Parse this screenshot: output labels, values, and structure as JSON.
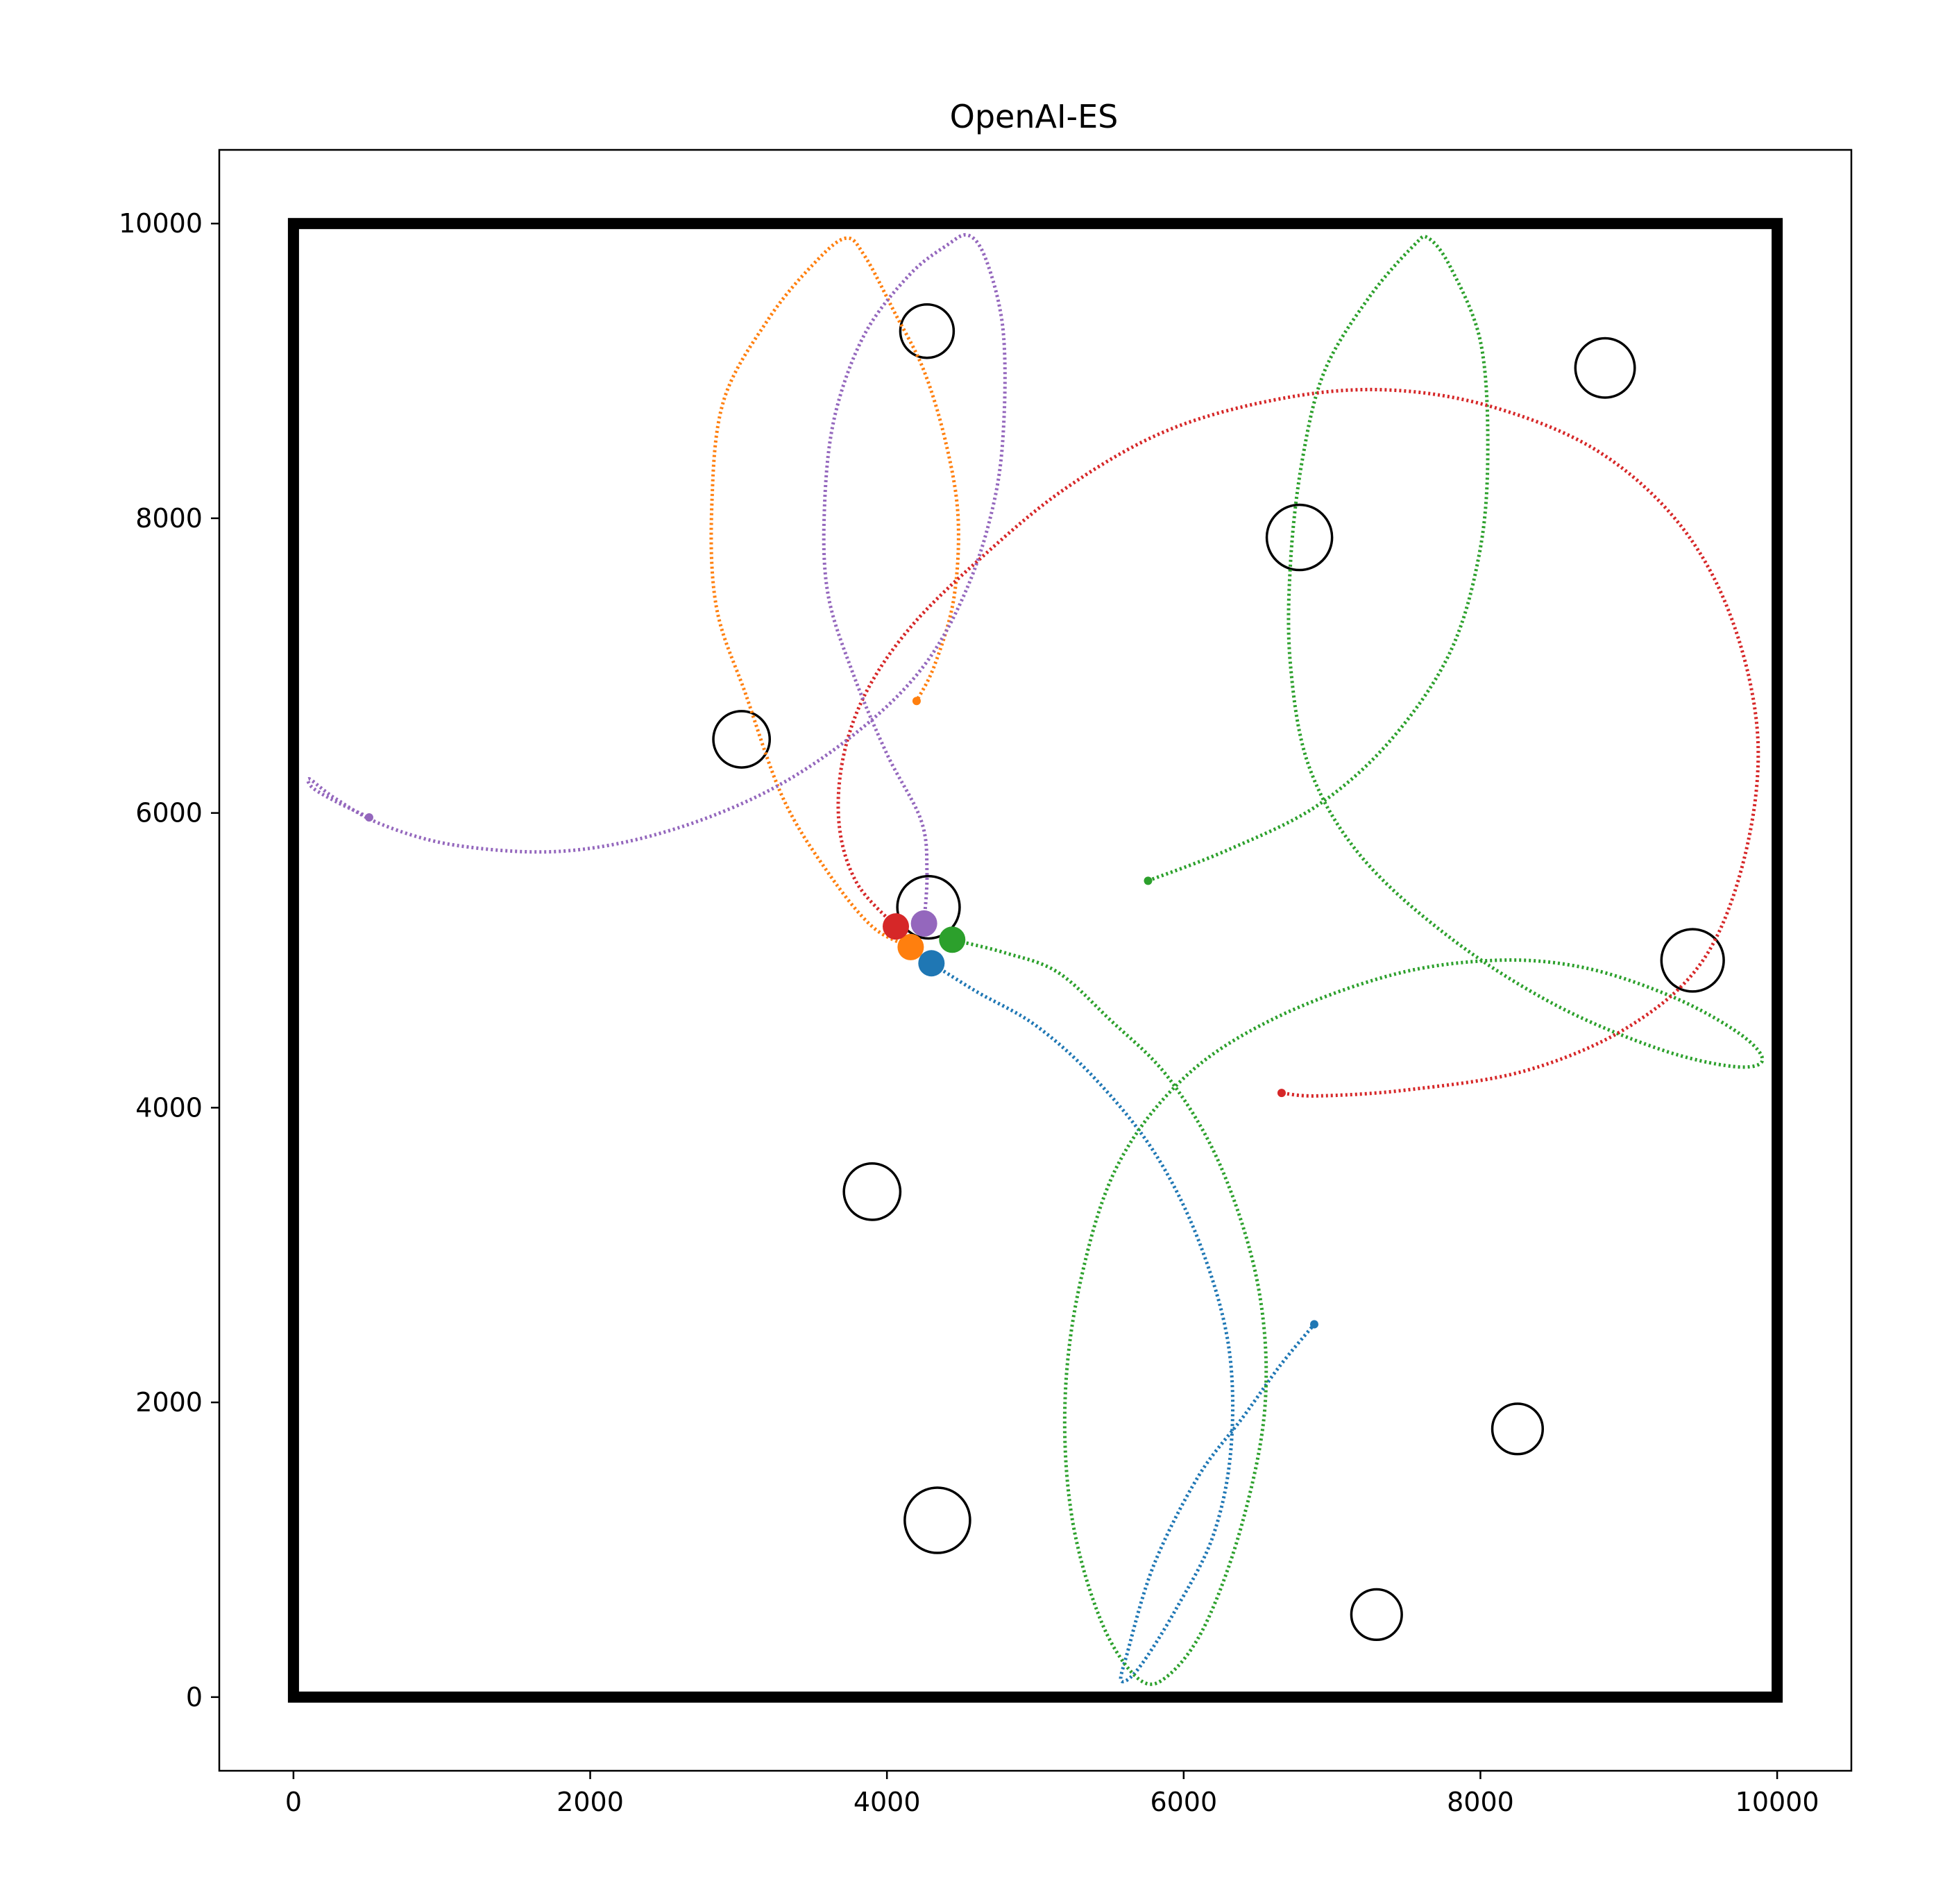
{
  "chart_data": {
    "type": "scatter",
    "title": "OpenAI-ES",
    "xlabel": "",
    "ylabel": "",
    "xlim": [
      -500,
      10500
    ],
    "ylim": [
      -500,
      10500
    ],
    "xticks": [
      0,
      2000,
      4000,
      6000,
      8000,
      10000
    ],
    "yticks": [
      0,
      2000,
      4000,
      6000,
      8000,
      10000
    ],
    "xtick_labels": [
      "0",
      "2000",
      "4000",
      "6000",
      "8000",
      "10000"
    ],
    "ytick_labels": [
      "0",
      "2000",
      "4000",
      "6000",
      "8000",
      "10000"
    ],
    "grid": false,
    "arena": {
      "x0": 0,
      "y0": 0,
      "x1": 10000,
      "y1": 10000
    },
    "obstacles": [
      {
        "x": 4270,
        "y": 9270,
        "r": 180
      },
      {
        "x": 8840,
        "y": 9020,
        "r": 200
      },
      {
        "x": 6780,
        "y": 7870,
        "r": 220
      },
      {
        "x": 3020,
        "y": 6500,
        "r": 190
      },
      {
        "x": 4280,
        "y": 5360,
        "r": 210
      },
      {
        "x": 9430,
        "y": 5000,
        "r": 210
      },
      {
        "x": 3900,
        "y": 3430,
        "r": 190
      },
      {
        "x": 8250,
        "y": 1820,
        "r": 170
      },
      {
        "x": 4340,
        "y": 1200,
        "r": 220
      },
      {
        "x": 7300,
        "y": 560,
        "r": 170
      }
    ],
    "series": [
      {
        "color": "#1f77b4",
        "start": [
          4300,
          4980
        ],
        "end": [
          6880,
          2530
        ],
        "points": [
          [
            4300,
            4980
          ],
          [
            4600,
            4790
          ],
          [
            5000,
            4560
          ],
          [
            5400,
            4200
          ],
          [
            5800,
            3700
          ],
          [
            6100,
            3100
          ],
          [
            6300,
            2400
          ],
          [
            6320,
            1700
          ],
          [
            6200,
            1100
          ],
          [
            5950,
            600
          ],
          [
            5700,
            200
          ],
          [
            5580,
            110
          ],
          [
            5620,
            300
          ],
          [
            5800,
            900
          ],
          [
            6100,
            1500
          ],
          [
            6400,
            1900
          ],
          [
            6650,
            2250
          ],
          [
            6880,
            2530
          ]
        ]
      },
      {
        "color": "#ff7f0e",
        "start": [
          4160,
          5090
        ],
        "end": [
          4200,
          6760
        ],
        "points": [
          [
            4160,
            5090
          ],
          [
            3900,
            5230
          ],
          [
            3600,
            5600
          ],
          [
            3300,
            6100
          ],
          [
            3050,
            6800
          ],
          [
            2850,
            7400
          ],
          [
            2820,
            8100
          ],
          [
            2900,
            8800
          ],
          [
            3200,
            9350
          ],
          [
            3500,
            9720
          ],
          [
            3720,
            9900
          ],
          [
            3850,
            9780
          ],
          [
            4050,
            9400
          ],
          [
            4250,
            9000
          ],
          [
            4400,
            8500
          ],
          [
            4480,
            8000
          ],
          [
            4450,
            7450
          ],
          [
            4320,
            7000
          ],
          [
            4200,
            6760
          ]
        ]
      },
      {
        "color": "#2ca02c",
        "start": [
          4440,
          5140
        ],
        "end": [
          5760,
          5540
        ],
        "points": [
          [
            4440,
            5140
          ],
          [
            4800,
            5050
          ],
          [
            5150,
            4920
          ],
          [
            5500,
            4600
          ],
          [
            5900,
            4200
          ],
          [
            6250,
            3600
          ],
          [
            6500,
            2800
          ],
          [
            6550,
            2000
          ],
          [
            6400,
            1200
          ],
          [
            6150,
            500
          ],
          [
            5900,
            150
          ],
          [
            5700,
            120
          ],
          [
            5450,
            500
          ],
          [
            5250,
            1200
          ],
          [
            5200,
            2000
          ],
          [
            5300,
            2800
          ],
          [
            5550,
            3600
          ],
          [
            6000,
            4200
          ],
          [
            6600,
            4600
          ],
          [
            7400,
            4900
          ],
          [
            8100,
            5000
          ],
          [
            8700,
            4950
          ],
          [
            9300,
            4750
          ],
          [
            9750,
            4500
          ],
          [
            9900,
            4320
          ],
          [
            9700,
            4280
          ],
          [
            9200,
            4400
          ],
          [
            8500,
            4700
          ],
          [
            7800,
            5150
          ],
          [
            7200,
            5700
          ],
          [
            6850,
            6300
          ],
          [
            6720,
            7000
          ],
          [
            6720,
            7700
          ],
          [
            6800,
            8400
          ],
          [
            6950,
            9000
          ],
          [
            7250,
            9500
          ],
          [
            7550,
            9850
          ],
          [
            7650,
            9900
          ],
          [
            7800,
            9700
          ],
          [
            8000,
            9200
          ],
          [
            8050,
            8500
          ],
          [
            8000,
            7800
          ],
          [
            7800,
            7100
          ],
          [
            7400,
            6500
          ],
          [
            6900,
            6050
          ],
          [
            6300,
            5750
          ],
          [
            5760,
            5540
          ]
        ]
      },
      {
        "color": "#d62728",
        "start": [
          4060,
          5230
        ],
        "end": [
          6660,
          4100
        ],
        "points": [
          [
            4060,
            5230
          ],
          [
            3800,
            5520
          ],
          [
            3680,
            5900
          ],
          [
            3700,
            6350
          ],
          [
            3850,
            6800
          ],
          [
            4150,
            7250
          ],
          [
            4600,
            7700
          ],
          [
            5200,
            8200
          ],
          [
            5900,
            8600
          ],
          [
            6700,
            8820
          ],
          [
            7400,
            8870
          ],
          [
            8100,
            8750
          ],
          [
            8800,
            8450
          ],
          [
            9350,
            7950
          ],
          [
            9700,
            7300
          ],
          [
            9870,
            6500
          ],
          [
            9780,
            5700
          ],
          [
            9500,
            5000
          ],
          [
            9000,
            4550
          ],
          [
            8300,
            4250
          ],
          [
            7500,
            4120
          ],
          [
            6900,
            4080
          ],
          [
            6660,
            4100
          ]
        ]
      },
      {
        "color": "#9467bd",
        "start": [
          4250,
          5250
        ],
        "end": [
          510,
          5970
        ],
        "points": [
          [
            4250,
            5250
          ],
          [
            4270,
            5600
          ],
          [
            4230,
            5950
          ],
          [
            4000,
            6400
          ],
          [
            3770,
            6950
          ],
          [
            3600,
            7500
          ],
          [
            3580,
            8100
          ],
          [
            3650,
            8700
          ],
          [
            3850,
            9250
          ],
          [
            4150,
            9650
          ],
          [
            4400,
            9850
          ],
          [
            4550,
            9920
          ],
          [
            4670,
            9750
          ],
          [
            4780,
            9300
          ],
          [
            4790,
            8700
          ],
          [
            4730,
            8150
          ],
          [
            4550,
            7550
          ],
          [
            4250,
            7000
          ],
          [
            3800,
            6550
          ],
          [
            3200,
            6150
          ],
          [
            2500,
            5870
          ],
          [
            1800,
            5740
          ],
          [
            1100,
            5780
          ],
          [
            600,
            5920
          ],
          [
            280,
            6100
          ],
          [
            110,
            6230
          ],
          [
            130,
            6170
          ],
          [
            300,
            6070
          ],
          [
            510,
            5970
          ]
        ]
      }
    ]
  }
}
